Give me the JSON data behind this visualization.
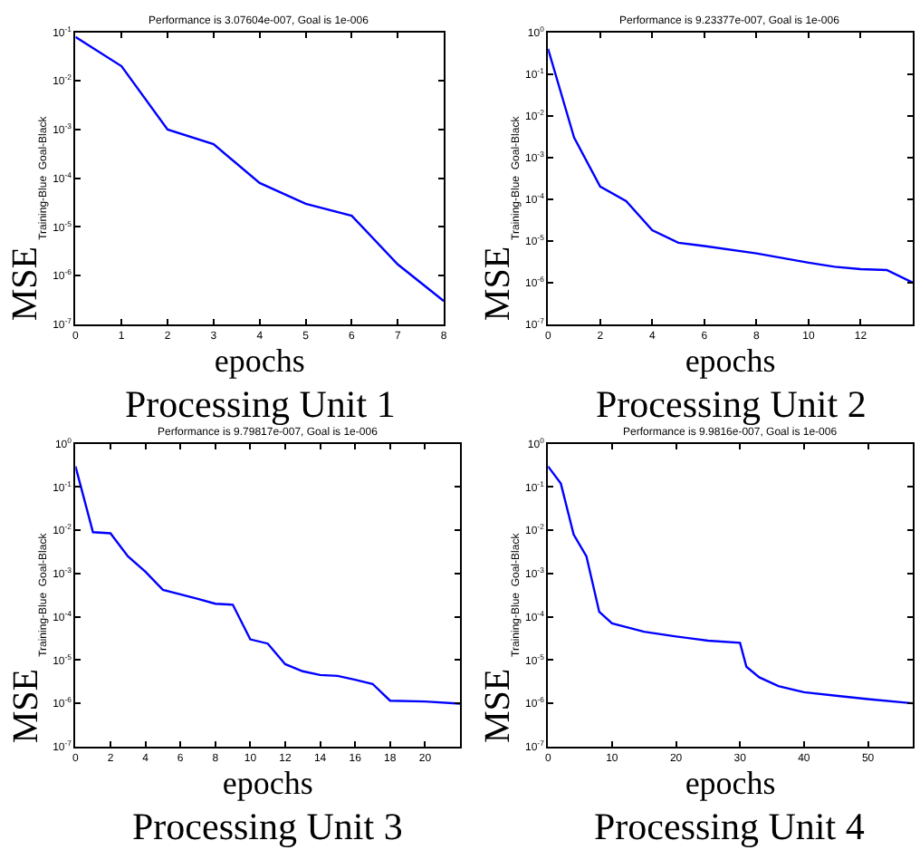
{
  "chart_data": [
    {
      "type": "line",
      "title": "Performance is 3.07604e-007, Goal is 1e-006",
      "xlabel": "epochs",
      "ylabel": "Training-Blue  Goal-Black",
      "annotations": [
        "MSE",
        "Processing Unit 1"
      ],
      "log": "y",
      "grid": false,
      "x": [
        0,
        1,
        2,
        3,
        4,
        5,
        6,
        7,
        8
      ],
      "xlim": [
        0,
        8
      ],
      "xticks": [
        0,
        1,
        2,
        3,
        4,
        5,
        6,
        7,
        8
      ],
      "ylim": [
        1e-07,
        0.1
      ],
      "yticks": [
        {
          "value": 1e-07,
          "label": "10$^{-7}$"
        },
        {
          "value": 1e-06,
          "label": "10$^{-6}$"
        },
        {
          "value": 1e-05,
          "label": "10$^{-5}$"
        },
        {
          "value": 0.0001,
          "label": "10$^{-4}$"
        },
        {
          "value": 0.001,
          "label": "10$^{-3}$"
        },
        {
          "value": 0.01,
          "label": "10$^{-2}$"
        },
        {
          "value": 0.1,
          "label": "10$^{-1}$"
        }
      ],
      "series": [
        {
          "color": "#0000ff",
          "values": [
            0.08,
            0.02,
            0.001,
            0.0005,
            8e-05,
            3e-05,
            1.7e-05,
            1.7e-06,
            3e-07
          ]
        }
      ]
    },
    {
      "type": "line",
      "title": "Performance is 9.23377e-007, Goal is 1e-006",
      "xlabel": "epochs",
      "ylabel": "Training-Blue  Goal-Black",
      "annotations": [
        "MSE",
        "Processing Unit 2"
      ],
      "log": "y",
      "grid": false,
      "x": [
        0,
        1,
        2,
        3,
        4,
        5,
        6,
        8,
        10,
        11,
        12,
        13,
        14
      ],
      "xlim": [
        0,
        14
      ],
      "xticks": [
        0,
        2,
        4,
        6,
        8,
        10,
        12
      ],
      "ylim": [
        1e-07,
        1
      ],
      "yticks": [
        {
          "value": 1e-07,
          "label": "10$^{-7}$"
        },
        {
          "value": 1e-06,
          "label": "10$^{-6}$"
        },
        {
          "value": 1e-05,
          "label": "10$^{-5}$"
        },
        {
          "value": 0.0001,
          "label": "10$^{-4}$"
        },
        {
          "value": 0.001,
          "label": "10$^{-3}$"
        },
        {
          "value": 0.01,
          "label": "10$^{-2}$"
        },
        {
          "value": 0.1,
          "label": "10$^{-1}$"
        },
        {
          "value": 1,
          "label": "10$^{0}$"
        }
      ],
      "series": [
        {
          "color": "#0000ff",
          "values": [
            0.4,
            0.003,
            0.0002,
            9e-05,
            1.8e-05,
            9e-06,
            7.5e-06,
            5e-06,
            3e-06,
            2.4e-06,
            2.1e-06,
            2e-06,
            1e-06
          ]
        }
      ]
    },
    {
      "type": "line",
      "title": "Performance is 9.79817e-007, Goal is 1e-006",
      "xlabel": "epochs",
      "ylabel": "Training-Blue  Goal-Black",
      "annotations": [
        "MSE",
        "Processing Unit 3"
      ],
      "log": "y",
      "grid": false,
      "x": [
        0,
        1,
        2,
        3,
        4,
        5,
        6,
        7,
        8,
        9,
        10,
        11,
        12,
        13,
        14,
        15,
        16,
        17,
        18,
        20,
        22
      ],
      "xlim": [
        0,
        22
      ],
      "xticks": [
        0,
        2,
        4,
        6,
        8,
        10,
        12,
        14,
        16,
        18,
        20
      ],
      "ylim": [
        1e-07,
        1
      ],
      "yticks": [
        {
          "value": 1e-07,
          "label": "10$^{-7}$"
        },
        {
          "value": 1e-06,
          "label": "10$^{-6}$"
        },
        {
          "value": 1e-05,
          "label": "10$^{-5}$"
        },
        {
          "value": 0.0001,
          "label": "10$^{-4}$"
        },
        {
          "value": 0.001,
          "label": "10$^{-3}$"
        },
        {
          "value": 0.01,
          "label": "10$^{-2}$"
        },
        {
          "value": 0.1,
          "label": "10$^{-1}$"
        },
        {
          "value": 1,
          "label": "10$^{0}$"
        }
      ],
      "series": [
        {
          "color": "#0000ff",
          "values": [
            0.3,
            0.009,
            0.0085,
            0.0025,
            0.0011,
            0.00042,
            0.00033,
            0.00026,
            0.0002,
            0.00019,
            3e-05,
            2.4e-05,
            8e-06,
            5.5e-06,
            4.5e-06,
            4.3e-06,
            3.5e-06,
            2.8e-06,
            1.15e-06,
            1.1e-06,
            9.8e-07
          ]
        }
      ]
    },
    {
      "type": "line",
      "title": "Performance is 9.9816e-007, Goal is 1e-006",
      "xlabel": "epochs",
      "ylabel": "Training-Blue  Goal-Black",
      "annotations": [
        "MSE",
        "Processing Unit 4"
      ],
      "log": "y",
      "grid": false,
      "x": [
        0,
        2,
        4,
        6,
        8,
        10,
        15,
        20,
        25,
        30,
        31,
        33,
        36,
        40,
        45,
        50,
        57
      ],
      "xlim": [
        0,
        57
      ],
      "xticks": [
        0,
        10,
        20,
        30,
        40,
        50
      ],
      "ylim": [
        1e-07,
        1
      ],
      "yticks": [
        {
          "value": 1e-07,
          "label": "10$^{-7}$"
        },
        {
          "value": 1e-06,
          "label": "10$^{-6}$"
        },
        {
          "value": 1e-05,
          "label": "10$^{-5}$"
        },
        {
          "value": 0.0001,
          "label": "10$^{-4}$"
        },
        {
          "value": 0.001,
          "label": "10$^{-3}$"
        },
        {
          "value": 0.01,
          "label": "10$^{-2}$"
        },
        {
          "value": 0.1,
          "label": "10$^{-1}$"
        },
        {
          "value": 1,
          "label": "10$^{0}$"
        }
      ],
      "series": [
        {
          "color": "#0000ff",
          "values": [
            0.3,
            0.12,
            0.008,
            0.0025,
            0.00013,
            7e-05,
            4.5e-05,
            3.5e-05,
            2.8e-05,
            2.5e-05,
            7e-06,
            4e-06,
            2.5e-06,
            1.8e-06,
            1.5e-06,
            1.25e-06,
            1e-06
          ]
        }
      ]
    }
  ]
}
